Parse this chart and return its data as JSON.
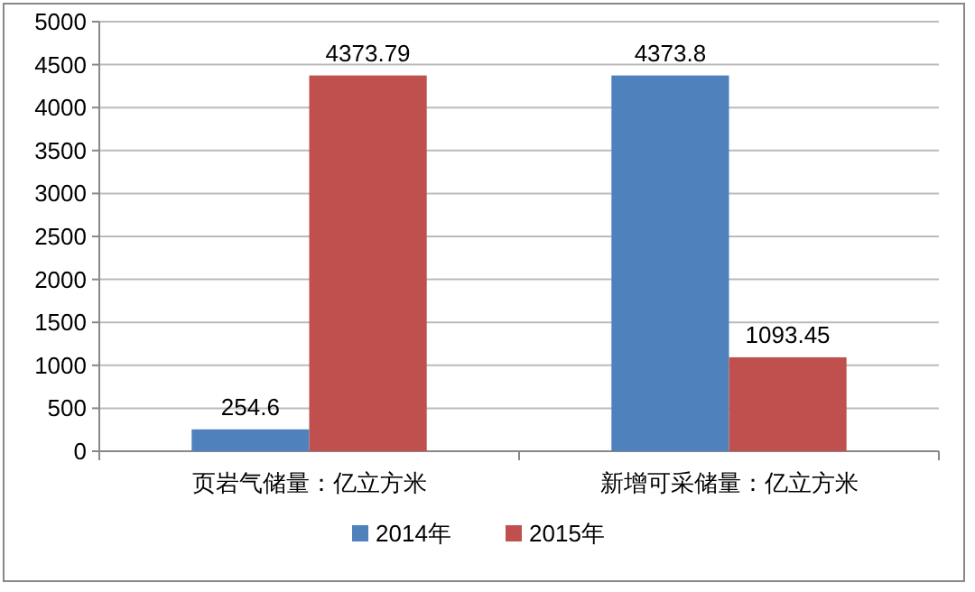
{
  "chart_data": {
    "type": "bar",
    "categories": [
      "页岩气储量：亿立方米",
      "新增可采储量：亿立方米"
    ],
    "series": [
      {
        "name": "2014年",
        "color": "#4f81bd",
        "values": [
          254.6,
          4373.8
        ]
      },
      {
        "name": "2015年",
        "color": "#c0504d",
        "values": [
          4373.79,
          1093.45
        ]
      }
    ],
    "ylim": [
      0,
      5000
    ],
    "yticks": [
      0,
      500,
      1000,
      1500,
      2000,
      2500,
      3000,
      3500,
      4000,
      4500,
      5000
    ],
    "grid": "y",
    "legend": "bottom",
    "data_labels": true
  }
}
